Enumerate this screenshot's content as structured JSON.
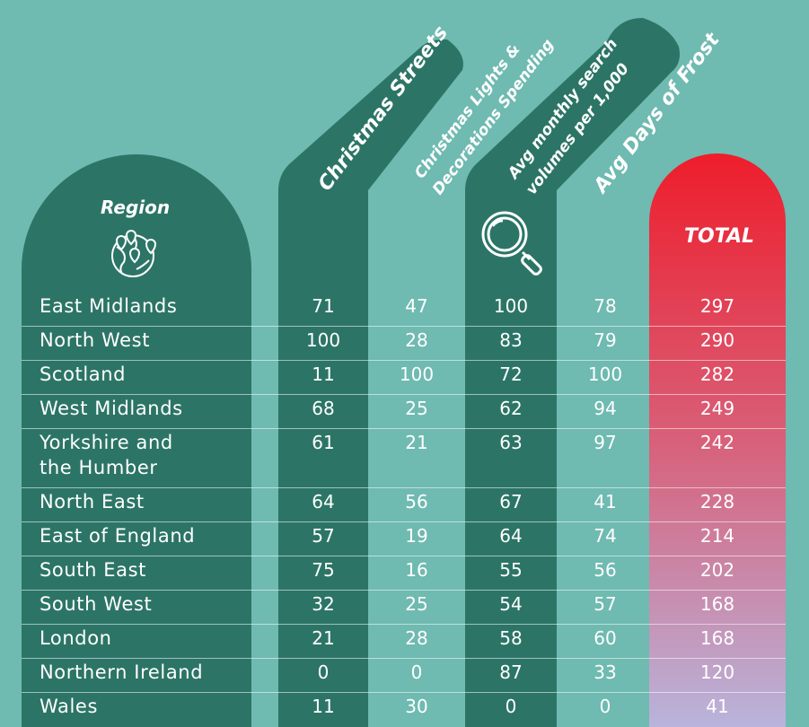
{
  "chart_data": {
    "type": "table",
    "columns": [
      "Region",
      "Christmas Streets",
      "Christmas Lights & Decorations Spending",
      "Avg monthly search volumes per 1,000",
      "Avg Days of Frost",
      "TOTAL"
    ],
    "header_lines": {
      "region": "Region",
      "streets": "Christmas Streets",
      "lights_1": "Christmas Lights &",
      "lights_2": "Decorations Spending",
      "search_1": "Avg monthly search",
      "search_2": "volumes per 1,000",
      "frost": "Avg Days of Frost",
      "total": "TOTAL"
    },
    "rows": [
      {
        "region": [
          "East Midlands"
        ],
        "values": [
          71,
          47,
          100,
          78,
          297
        ]
      },
      {
        "region": [
          "North West"
        ],
        "values": [
          100,
          28,
          83,
          79,
          290
        ]
      },
      {
        "region": [
          "Scotland"
        ],
        "values": [
          11,
          100,
          72,
          100,
          282
        ]
      },
      {
        "region": [
          "West Midlands"
        ],
        "values": [
          68,
          25,
          62,
          94,
          249
        ]
      },
      {
        "region": [
          "Yorkshire and",
          "the Humber"
        ],
        "values": [
          61,
          21,
          63,
          97,
          242
        ]
      },
      {
        "region": [
          "North East"
        ],
        "values": [
          64,
          56,
          67,
          41,
          228
        ]
      },
      {
        "region": [
          "East of England"
        ],
        "values": [
          57,
          19,
          64,
          74,
          214
        ]
      },
      {
        "region": [
          "South East"
        ],
        "values": [
          75,
          16,
          55,
          56,
          202
        ]
      },
      {
        "region": [
          "South West"
        ],
        "values": [
          32,
          25,
          54,
          57,
          168
        ]
      },
      {
        "region": [
          "London"
        ],
        "values": [
          21,
          28,
          58,
          60,
          168
        ]
      },
      {
        "region": [
          "Northern Ireland"
        ],
        "values": [
          0,
          0,
          87,
          33,
          120
        ]
      },
      {
        "region": [
          "Wales"
        ],
        "values": [
          11,
          30,
          0,
          0,
          41
        ]
      }
    ]
  },
  "colors": {
    "background": "#6fbab1",
    "dark": "#2c7566",
    "total_top": "#ee1d2b",
    "total_bottom": "#b9b4dc"
  },
  "icons": {
    "region": "globe-pins-icon",
    "search": "magnifier-icon"
  }
}
